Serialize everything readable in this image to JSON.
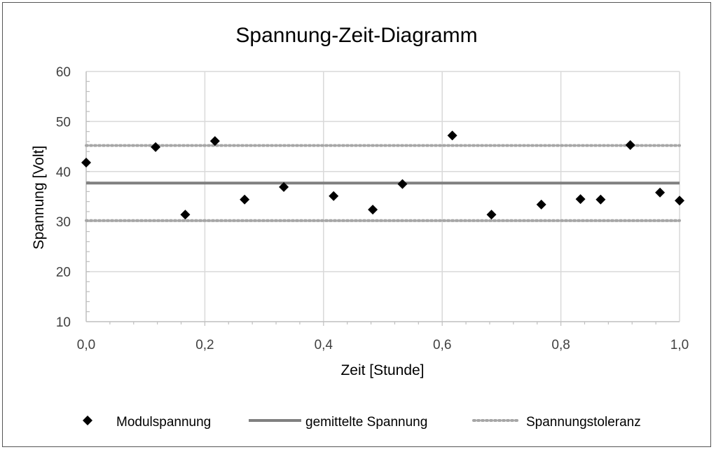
{
  "chart_data": {
    "type": "scatter",
    "title": "Spannung-Zeit-Diagramm",
    "xlabel": "Zeit [Stunde]",
    "ylabel": "Spannung [Volt]",
    "xlim": [
      0,
      1
    ],
    "ylim": [
      10,
      60
    ],
    "x_ticks": [
      0,
      0.2,
      0.4,
      0.6,
      0.8,
      1.0
    ],
    "x_tick_labels": [
      "0,0",
      "0,2",
      "0,4",
      "0,6",
      "0,8",
      "1,0"
    ],
    "y_ticks": [
      10,
      20,
      30,
      40,
      50,
      60
    ],
    "y_tick_labels": [
      "10",
      "20",
      "30",
      "40",
      "50",
      "60"
    ],
    "grid": true,
    "legend_position": "bottom",
    "series": [
      {
        "name": "Modulspannung",
        "kind": "scatter",
        "marker": "diamond",
        "color": "#000000",
        "x": [
          0.0,
          0.117,
          0.167,
          0.217,
          0.267,
          0.333,
          0.417,
          0.483,
          0.533,
          0.617,
          0.683,
          0.767,
          0.833,
          0.867,
          0.917,
          0.967,
          1.0
        ],
        "y": [
          41.8,
          44.9,
          31.4,
          46.1,
          34.4,
          36.9,
          35.1,
          32.4,
          37.5,
          47.2,
          31.4,
          33.4,
          34.5,
          34.4,
          45.3,
          35.8,
          34.2
        ]
      },
      {
        "name": "gemittelte Spannung",
        "kind": "hline",
        "style": "solid",
        "color": "#808080",
        "y": 37.7
      },
      {
        "name": "Spannungstoleranz",
        "kind": "hlines",
        "style": "dotted",
        "color": "#a6a6a6",
        "y": [
          30.2,
          45.2
        ]
      }
    ]
  }
}
